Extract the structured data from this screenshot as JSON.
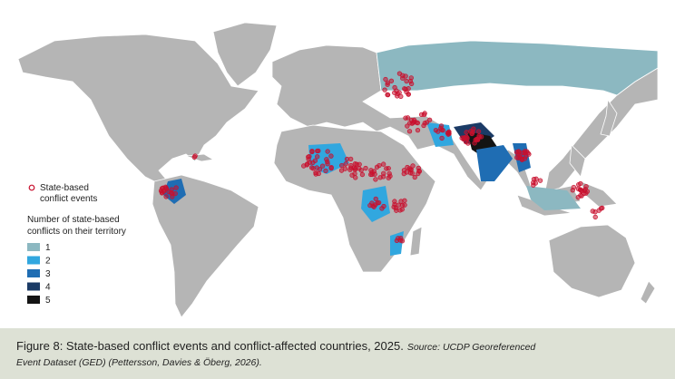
{
  "legend": {
    "events_label": [
      "State-based",
      "conflict events"
    ],
    "count_title": [
      "Number of state-based",
      "conflicts on their territory"
    ],
    "items": [
      {
        "label": "1",
        "color": "#8cb8c1"
      },
      {
        "label": "2",
        "color": "#31a7df"
      },
      {
        "label": "3",
        "color": "#1f6db3"
      },
      {
        "label": "4",
        "color": "#1b3b66"
      },
      {
        "label": "5",
        "color": "#141414"
      }
    ]
  },
  "caption": {
    "title": "Figure 8: State-based conflict events and conflict-affected countries, 2025.",
    "source_line1": "Source: UCDP Georeferenced",
    "source_line2": "Event Dataset (GED) (Pettersson, Davies & Öberg, 2026)."
  }
}
